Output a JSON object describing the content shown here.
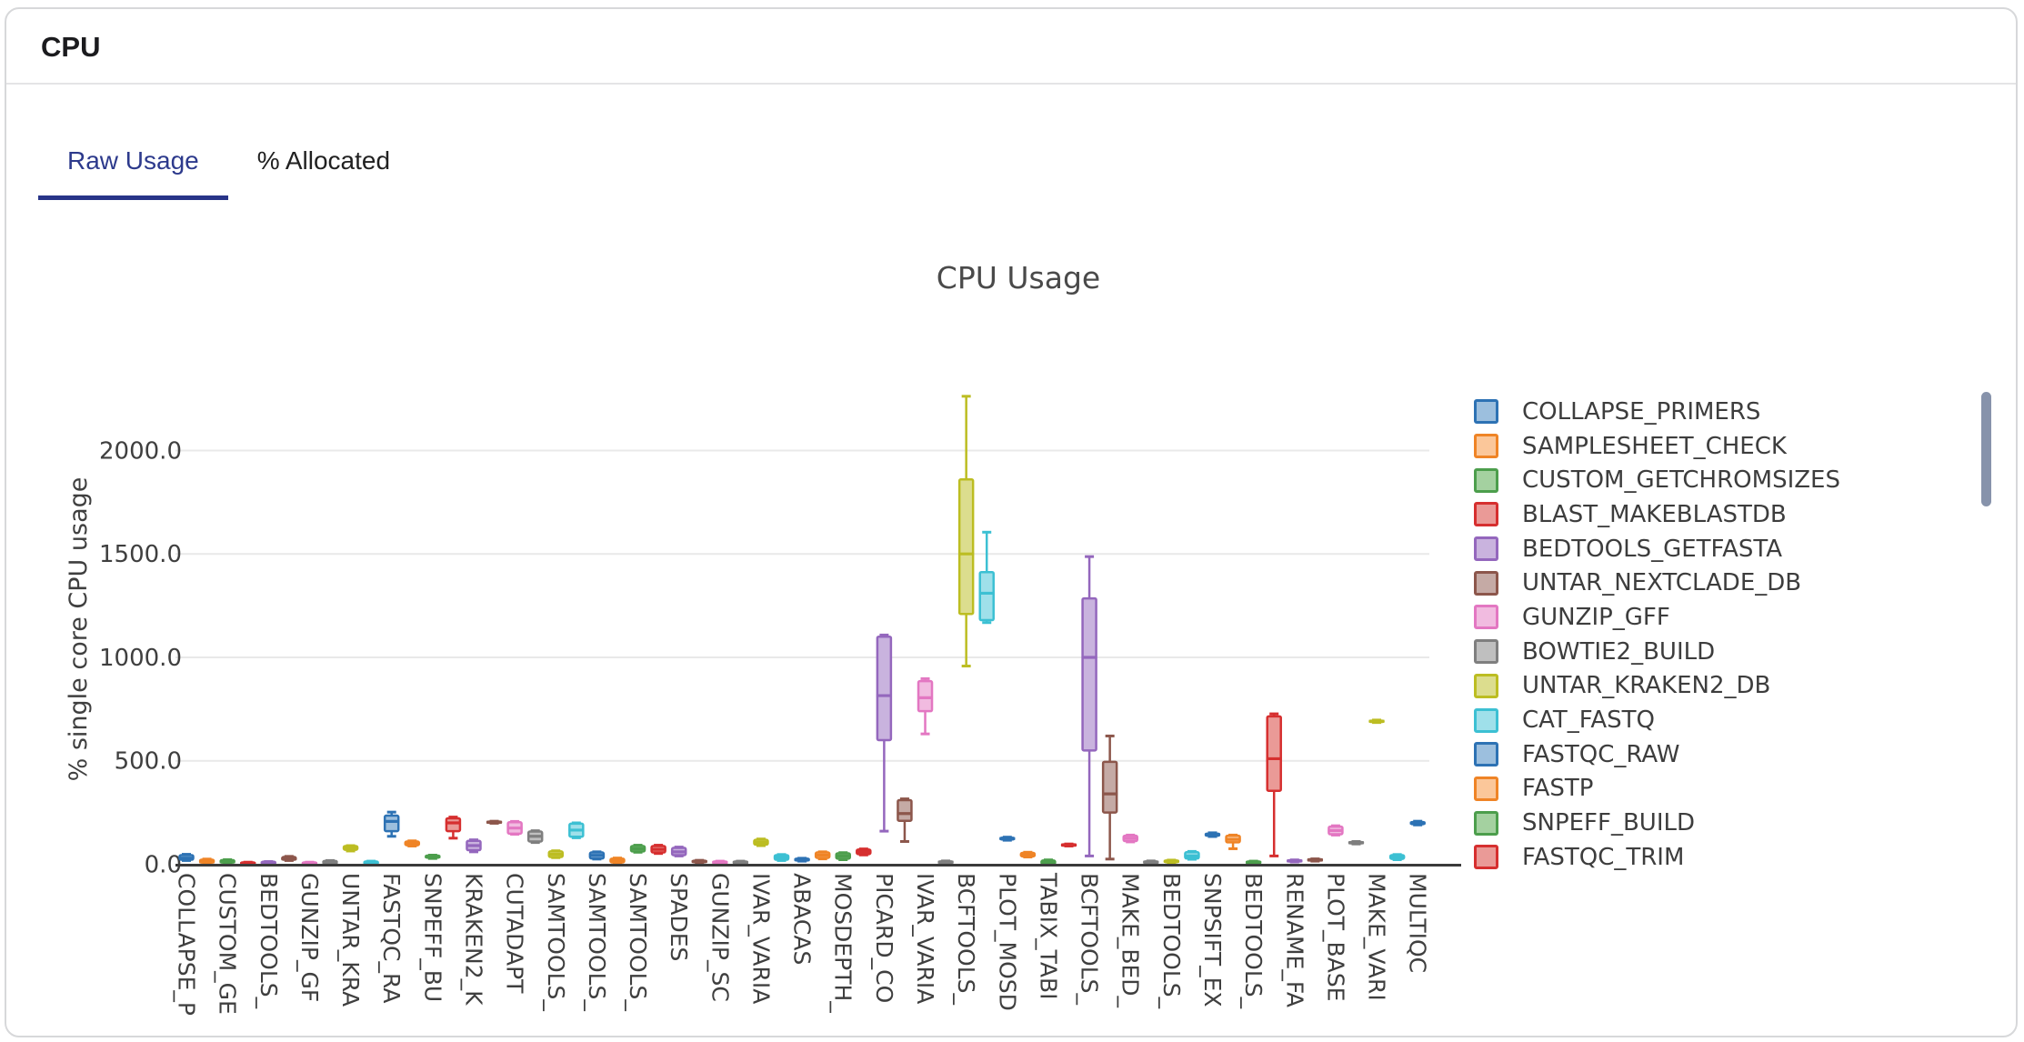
{
  "header": {
    "title": "CPU"
  },
  "tabs": [
    {
      "label": "Raw Usage",
      "active": true
    },
    {
      "label": "% Allocated",
      "active": false
    }
  ],
  "accent_colors": {
    "active_tab_text": "#2d3a8c",
    "active_tab_underline": "#283488",
    "scrollbar_thumb": "#8793ab",
    "card_border": "#d7d8da"
  },
  "chart_data": {
    "type": "boxplot",
    "title": "CPU Usage",
    "ylabel": "% single core CPU usage",
    "xlabel": "",
    "ylim": [
      0,
      2320
    ],
    "grid": true,
    "legend_position": "right",
    "yticks": [
      {
        "value": 0,
        "label": "0.0"
      },
      {
        "value": 500,
        "label": "500.0"
      },
      {
        "value": 1000,
        "label": "1000.0"
      },
      {
        "value": 1500,
        "label": "1500.0"
      },
      {
        "value": 2000,
        "label": "2000.0"
      }
    ],
    "legend": [
      {
        "label": "COLLAPSE_PRIMERS"
      },
      {
        "label": "SAMPLESHEET_CHECK"
      },
      {
        "label": "CUSTOM_GETCHROMSIZES"
      },
      {
        "label": "BLAST_MAKEBLASTDB"
      },
      {
        "label": "BEDTOOLS_GETFASTA"
      },
      {
        "label": "UNTAR_NEXTCLADE_DB"
      },
      {
        "label": "GUNZIP_GFF"
      },
      {
        "label": "BOWTIE2_BUILD"
      },
      {
        "label": "UNTAR_KRAKEN2_DB"
      },
      {
        "label": "CAT_FASTQ"
      },
      {
        "label": "FASTQC_RAW"
      },
      {
        "label": "FASTP"
      },
      {
        "label": "SNPEFF_BUILD"
      },
      {
        "label": "FASTQC_TRIM"
      }
    ],
    "palette": [
      {
        "stroke": "#2d72b4",
        "fill": "#9cbfde"
      },
      {
        "stroke": "#ef8426",
        "fill": "#fbc79a"
      },
      {
        "stroke": "#4c9e4c",
        "fill": "#a4d1a0"
      },
      {
        "stroke": "#d62f2f",
        "fill": "#ea9a97"
      },
      {
        "stroke": "#9467bd",
        "fill": "#c9b3de"
      },
      {
        "stroke": "#8c564b",
        "fill": "#c5aaa5"
      },
      {
        "stroke": "#e377c2",
        "fill": "#f1bbe0"
      },
      {
        "stroke": "#7f7f7f",
        "fill": "#bfbfbf"
      },
      {
        "stroke": "#bcbd22",
        "fill": "#dcdd8e"
      },
      {
        "stroke": "#3cc0d3",
        "fill": "#9fe0ea"
      }
    ],
    "series": [
      {
        "label": "COLLAPSE_P",
        "values": [
          18,
          22,
          30,
          44,
          48
        ]
      },
      {
        "label": "",
        "values": [
          4,
          8,
          12,
          22,
          25
        ]
      },
      {
        "label": "CUSTOM_GE",
        "values": [
          5,
          8,
          12,
          20,
          22
        ]
      },
      {
        "label": "",
        "values": [
          0,
          2,
          4,
          9,
          10
        ]
      },
      {
        "label": "BEDTOOLS_",
        "values": [
          2,
          4,
          6,
          12,
          13
        ]
      },
      {
        "label": "",
        "values": [
          18,
          22,
          26,
          35,
          38
        ]
      },
      {
        "label": "GUNZIP_GF",
        "values": [
          0,
          2,
          4,
          9,
          10
        ]
      },
      {
        "label": "",
        "values": [
          3,
          6,
          8,
          16,
          18
        ]
      },
      {
        "label": "UNTAR_KRA",
        "values": [
          64,
          70,
          78,
          88,
          90
        ]
      },
      {
        "label": "",
        "values": [
          0,
          3,
          6,
          13,
          15
        ]
      },
      {
        "label": "FASTQC_RA",
        "values": [
          135,
          160,
          207,
          235,
          252
        ]
      },
      {
        "label": "",
        "values": [
          88,
          92,
          100,
          110,
          113
        ]
      },
      {
        "label": "SNPEFF_BU",
        "values": [
          28,
          32,
          36,
          42,
          44
        ]
      },
      {
        "label": "",
        "values": [
          126,
          160,
          200,
          222,
          228
        ]
      },
      {
        "label": "KRAKEN2_K",
        "values": [
          60,
          68,
          90,
          113,
          118
        ]
      },
      {
        "label": "",
        "values": [
          198,
          201,
          203,
          206,
          208
        ]
      },
      {
        "label": "CUTADAPT",
        "values": [
          145,
          148,
          175,
          203,
          207
        ]
      },
      {
        "label": "",
        "values": [
          105,
          110,
          135,
          158,
          162
        ]
      },
      {
        "label": "SAMTOOLS_",
        "values": [
          32,
          35,
          48,
          62,
          65
        ]
      },
      {
        "label": "",
        "values": [
          128,
          133,
          165,
          196,
          200
        ]
      },
      {
        "label": "SAMTOOLS_",
        "values": [
          25,
          28,
          43,
          57,
          60
        ]
      },
      {
        "label": "",
        "values": [
          6,
          9,
          16,
          27,
          30
        ]
      },
      {
        "label": "SAMTOOLS_",
        "values": [
          58,
          62,
          75,
          88,
          92
        ]
      },
      {
        "label": "",
        "values": [
          52,
          57,
          72,
          88,
          92
        ]
      },
      {
        "label": "SPADES",
        "values": [
          40,
          44,
          60,
          79,
          83
        ]
      },
      {
        "label": "",
        "values": [
          8,
          10,
          13,
          17,
          19
        ]
      },
      {
        "label": "GUNZIP_SC",
        "values": [
          4,
          6,
          9,
          13,
          15
        ]
      },
      {
        "label": "",
        "values": [
          4,
          6,
          9,
          13,
          15
        ]
      },
      {
        "label": "IVAR_VARIA",
        "values": [
          90,
          95,
          105,
          118,
          122
        ]
      },
      {
        "label": "",
        "values": [
          18,
          22,
          33,
          44,
          47
        ]
      },
      {
        "label": "ABACAS",
        "values": [
          15,
          18,
          22,
          27,
          29
        ]
      },
      {
        "label": "",
        "values": [
          26,
          31,
          44,
          57,
          60
        ]
      },
      {
        "label": "MOSDEPTH_",
        "values": [
          22,
          27,
          40,
          53,
          56
        ]
      },
      {
        "label": "",
        "values": [
          45,
          49,
          60,
          71,
          74
        ]
      },
      {
        "label": "PICARD_CO",
        "values": [
          160,
          600,
          815,
          1100,
          1108
        ]
      },
      {
        "label": "",
        "values": [
          110,
          210,
          245,
          310,
          316
        ]
      },
      {
        "label": "IVAR_VARIA",
        "values": [
          630,
          740,
          805,
          885,
          897
        ]
      },
      {
        "label": "",
        "values": [
          5,
          7,
          10,
          14,
          16
        ]
      },
      {
        "label": "BCFTOOLS_",
        "values": [
          958,
          1210,
          1500,
          1860,
          2262
        ]
      },
      {
        "label": "",
        "values": [
          1168,
          1180,
          1310,
          1412,
          1605
        ]
      },
      {
        "label": "PLOT_MOSD",
        "values": [
          116,
          120,
          124,
          128,
          131
        ]
      },
      {
        "label": "",
        "values": [
          35,
          38,
          45,
          55,
          58
        ]
      },
      {
        "label": "TABIX_TABI",
        "values": [
          0,
          3,
          8,
          18,
          21
        ]
      },
      {
        "label": "",
        "values": [
          88,
          90,
          93,
          96,
          98
        ]
      },
      {
        "label": "BCFTOOLS_",
        "values": [
          40,
          550,
          1000,
          1285,
          1487
        ]
      },
      {
        "label": "",
        "values": [
          25,
          250,
          340,
          495,
          620
        ]
      },
      {
        "label": "MAKE_BED_",
        "values": [
          108,
          112,
          125,
          138,
          141
        ]
      },
      {
        "label": "",
        "values": [
          5,
          7,
          10,
          14,
          16
        ]
      },
      {
        "label": "BEDTOOLS_",
        "values": [
          8,
          10,
          14,
          18,
          20
        ]
      },
      {
        "label": "",
        "values": [
          24,
          28,
          40,
          58,
          62
        ]
      },
      {
        "label": "SNPSIFT_EX",
        "values": [
          134,
          138,
          143,
          148,
          152
        ]
      },
      {
        "label": "",
        "values": [
          75,
          106,
          120,
          138,
          141
        ]
      },
      {
        "label": "BEDTOOLS_",
        "values": [
          4,
          6,
          9,
          13,
          15
        ]
      },
      {
        "label": "",
        "values": [
          40,
          355,
          510,
          715,
          727
        ]
      },
      {
        "label": "RENAME_FA",
        "values": [
          11,
          13,
          16,
          19,
          21
        ]
      },
      {
        "label": "",
        "values": [
          15,
          18,
          21,
          24,
          26
        ]
      },
      {
        "label": "PLOT_BASE",
        "values": [
          141,
          145,
          163,
          182,
          186
        ]
      },
      {
        "label": "",
        "values": [
          98,
          101,
          104,
          107,
          110
        ]
      },
      {
        "label": "MAKE_VARI",
        "values": [
          685,
          688,
          691,
          694,
          697
        ]
      },
      {
        "label": "",
        "values": [
          22,
          26,
          35,
          44,
          47
        ]
      },
      {
        "label": "MULTIQC",
        "values": [
          190,
          194,
          199,
          204,
          208
        ]
      }
    ]
  }
}
